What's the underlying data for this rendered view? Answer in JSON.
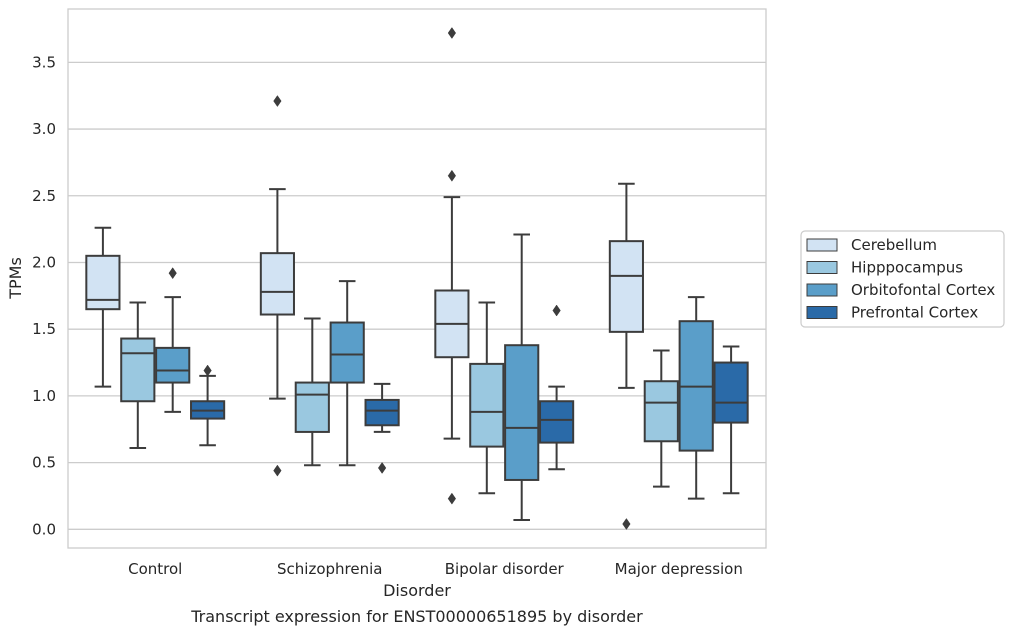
{
  "chart_data": {
    "type": "box",
    "title": "",
    "caption": "Transcript expression for ENST00000651895 by disorder",
    "xlabel": "Disorder",
    "ylabel": "TPMs",
    "ylim": [
      -0.14,
      3.9
    ],
    "yticks": [
      0.0,
      0.5,
      1.0,
      1.5,
      2.0,
      2.5,
      3.0,
      3.5
    ],
    "ytick_labels": [
      "0.0",
      "0.5",
      "1.0",
      "1.5",
      "2.0",
      "2.5",
      "3.0",
      "3.5"
    ],
    "grid": "horizontal",
    "legend_position": "right",
    "categories": [
      "Control",
      "Schizophrenia",
      "Bipolar disorder",
      "Major depression"
    ],
    "series": [
      {
        "name": "Cerebellum",
        "color": "#d2e3f3",
        "boxes": [
          {
            "whislo": 1.07,
            "q1": 1.65,
            "med": 1.72,
            "q3": 2.05,
            "whishi": 2.26,
            "fliers": []
          },
          {
            "whislo": 0.98,
            "q1": 1.61,
            "med": 1.78,
            "q3": 2.07,
            "whishi": 2.55,
            "fliers": [
              3.21,
              0.44
            ]
          },
          {
            "whislo": 0.68,
            "q1": 1.29,
            "med": 1.54,
            "q3": 1.79,
            "whishi": 2.49,
            "fliers": [
              3.72,
              2.65,
              0.23
            ]
          },
          {
            "whislo": 1.06,
            "q1": 1.48,
            "med": 1.9,
            "q3": 2.16,
            "whishi": 2.59,
            "fliers": [
              0.04
            ]
          }
        ]
      },
      {
        "name": "Hipppocampus",
        "color": "#9ac8e0",
        "boxes": [
          {
            "whislo": 0.61,
            "q1": 0.96,
            "med": 1.32,
            "q3": 1.43,
            "whishi": 1.7,
            "fliers": []
          },
          {
            "whislo": 0.48,
            "q1": 0.73,
            "med": 1.01,
            "q3": 1.1,
            "whishi": 1.58,
            "fliers": []
          },
          {
            "whislo": 0.27,
            "q1": 0.62,
            "med": 0.88,
            "q3": 1.24,
            "whishi": 1.7,
            "fliers": []
          },
          {
            "whislo": 0.32,
            "q1": 0.66,
            "med": 0.95,
            "q3": 1.11,
            "whishi": 1.34,
            "fliers": []
          }
        ]
      },
      {
        "name": "Orbitofontal Cortex",
        "color": "#5a9ec9",
        "boxes": [
          {
            "whislo": 0.88,
            "q1": 1.1,
            "med": 1.19,
            "q3": 1.36,
            "whishi": 1.74,
            "fliers": [
              1.92
            ]
          },
          {
            "whislo": 0.48,
            "q1": 1.1,
            "med": 1.31,
            "q3": 1.55,
            "whishi": 1.86,
            "fliers": []
          },
          {
            "whislo": 0.07,
            "q1": 0.37,
            "med": 0.76,
            "q3": 1.38,
            "whishi": 2.21,
            "fliers": []
          },
          {
            "whislo": 0.23,
            "q1": 0.59,
            "med": 1.07,
            "q3": 1.56,
            "whishi": 1.74,
            "fliers": []
          }
        ]
      },
      {
        "name": "Prefrontal Cortex",
        "color": "#2a6aa8",
        "boxes": [
          {
            "whislo": 0.63,
            "q1": 0.83,
            "med": 0.89,
            "q3": 0.96,
            "whishi": 1.15,
            "fliers": [
              1.19
            ]
          },
          {
            "whislo": 0.73,
            "q1": 0.78,
            "med": 0.89,
            "q3": 0.97,
            "whishi": 1.09,
            "fliers": [
              0.46
            ]
          },
          {
            "whislo": 0.45,
            "q1": 0.65,
            "med": 0.82,
            "q3": 0.96,
            "whishi": 1.07,
            "fliers": [
              1.64
            ]
          },
          {
            "whislo": 0.27,
            "q1": 0.8,
            "med": 0.95,
            "q3": 1.25,
            "whishi": 1.37,
            "fliers": []
          }
        ]
      }
    ]
  }
}
